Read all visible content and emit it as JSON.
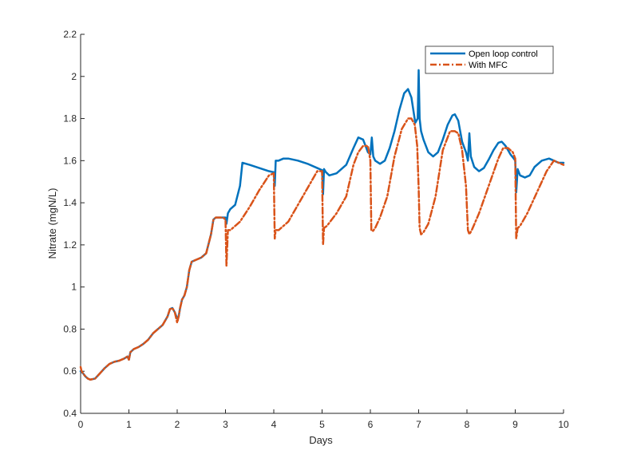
{
  "chart_data": {
    "type": "line",
    "xlabel": "Days",
    "ylabel": "Nitrate (mgN/L)",
    "xlim": [
      0,
      10
    ],
    "ylim": [
      0.4,
      2.2
    ],
    "xticks": [
      0,
      1,
      2,
      3,
      4,
      5,
      6,
      7,
      8,
      9,
      10
    ],
    "yticks": [
      0.4,
      0.6,
      0.8,
      1,
      1.2,
      1.4,
      1.6,
      1.8,
      2,
      2.2
    ],
    "xtick_labels": [
      "0",
      "1",
      "2",
      "3",
      "4",
      "5",
      "6",
      "7",
      "8",
      "9",
      "10"
    ],
    "ytick_labels": [
      "0.4",
      "0.6",
      "0.8",
      "1",
      "1.2",
      "1.4",
      "1.6",
      "1.8",
      "2",
      "2.2"
    ],
    "grid": false,
    "legend_position": "top-right",
    "series": [
      {
        "name": "Open loop control",
        "color": "#0072BD",
        "style": "solid",
        "x": [
          0,
          0.05,
          0.1,
          0.15,
          0.2,
          0.3,
          0.4,
          0.5,
          0.6,
          0.7,
          0.8,
          0.9,
          0.97,
          1.0,
          1.03,
          1.1,
          1.2,
          1.3,
          1.4,
          1.5,
          1.6,
          1.7,
          1.8,
          1.85,
          1.9,
          1.95,
          2.0,
          2.03,
          2.06,
          2.1,
          2.15,
          2.2,
          2.25,
          2.3,
          2.4,
          2.5,
          2.6,
          2.7,
          2.75,
          2.8,
          2.9,
          2.95,
          3.0,
          3.02,
          3.05,
          3.1,
          3.2,
          3.3,
          3.35,
          3.5,
          3.7,
          3.9,
          4.0,
          4.02,
          4.04,
          4.1,
          4.2,
          4.3,
          4.5,
          4.7,
          4.9,
          5.0,
          5.02,
          5.04,
          5.08,
          5.15,
          5.3,
          5.5,
          5.65,
          5.75,
          5.85,
          5.95,
          6.0,
          6.03,
          6.06,
          6.1,
          6.2,
          6.3,
          6.4,
          6.5,
          6.6,
          6.7,
          6.78,
          6.85,
          6.93,
          6.98,
          7.0,
          7.02,
          7.05,
          7.1,
          7.2,
          7.3,
          7.4,
          7.5,
          7.6,
          7.7,
          7.75,
          7.82,
          7.9,
          7.98,
          8.02,
          8.05,
          8.08,
          8.15,
          8.25,
          8.35,
          8.45,
          8.55,
          8.65,
          8.72,
          8.8,
          8.9,
          8.97,
          9.0,
          9.02,
          9.05,
          9.1,
          9.2,
          9.3,
          9.4,
          9.55,
          9.7,
          9.8,
          9.9,
          10.0
        ],
        "y": [
          0.6,
          0.59,
          0.575,
          0.565,
          0.56,
          0.565,
          0.59,
          0.615,
          0.635,
          0.645,
          0.65,
          0.66,
          0.67,
          0.655,
          0.69,
          0.705,
          0.715,
          0.73,
          0.75,
          0.78,
          0.8,
          0.82,
          0.86,
          0.895,
          0.9,
          0.88,
          0.85,
          0.86,
          0.9,
          0.94,
          0.96,
          1.0,
          1.08,
          1.12,
          1.13,
          1.14,
          1.16,
          1.25,
          1.32,
          1.33,
          1.33,
          1.33,
          1.33,
          1.3,
          1.35,
          1.37,
          1.39,
          1.48,
          1.59,
          1.58,
          1.565,
          1.55,
          1.545,
          1.48,
          1.6,
          1.6,
          1.61,
          1.61,
          1.6,
          1.585,
          1.565,
          1.555,
          1.44,
          1.56,
          1.545,
          1.53,
          1.54,
          1.58,
          1.66,
          1.71,
          1.7,
          1.64,
          1.63,
          1.71,
          1.62,
          1.6,
          1.585,
          1.6,
          1.66,
          1.74,
          1.84,
          1.92,
          1.94,
          1.9,
          1.78,
          1.8,
          2.03,
          1.8,
          1.74,
          1.7,
          1.64,
          1.62,
          1.64,
          1.7,
          1.77,
          1.815,
          1.82,
          1.79,
          1.69,
          1.64,
          1.6,
          1.73,
          1.62,
          1.57,
          1.55,
          1.565,
          1.605,
          1.65,
          1.685,
          1.69,
          1.67,
          1.63,
          1.61,
          1.6,
          1.45,
          1.56,
          1.53,
          1.52,
          1.53,
          1.57,
          1.6,
          1.61,
          1.6,
          1.59,
          1.59
        ]
      },
      {
        "name": "With MFC",
        "color": "#D95319",
        "style": "dash-dot",
        "x": [
          0,
          0.02,
          0.05,
          0.1,
          0.15,
          0.2,
          0.3,
          0.4,
          0.5,
          0.6,
          0.7,
          0.8,
          0.9,
          0.97,
          1.0,
          1.03,
          1.1,
          1.2,
          1.3,
          1.4,
          1.5,
          1.6,
          1.7,
          1.8,
          1.85,
          1.9,
          1.95,
          2.0,
          2.03,
          2.06,
          2.1,
          2.15,
          2.2,
          2.25,
          2.3,
          2.4,
          2.5,
          2.6,
          2.7,
          2.75,
          2.8,
          2.9,
          2.95,
          3.0,
          3.02,
          3.05,
          3.1,
          3.2,
          3.3,
          3.5,
          3.7,
          3.9,
          4.0,
          4.02,
          4.04,
          4.1,
          4.3,
          4.5,
          4.7,
          4.9,
          5.0,
          5.02,
          5.04,
          5.1,
          5.3,
          5.5,
          5.65,
          5.75,
          5.85,
          5.95,
          6.0,
          6.02,
          6.05,
          6.1,
          6.2,
          6.35,
          6.5,
          6.65,
          6.78,
          6.85,
          6.92,
          6.97,
          7.0,
          7.02,
          7.05,
          7.1,
          7.2,
          7.35,
          7.5,
          7.65,
          7.75,
          7.82,
          7.9,
          7.98,
          8.02,
          8.05,
          8.1,
          8.25,
          8.45,
          8.65,
          8.75,
          8.85,
          8.95,
          9.0,
          9.02,
          9.05,
          9.1,
          9.25,
          9.45,
          9.65,
          9.8,
          9.9,
          10.0
        ],
        "y": [
          0.62,
          0.6,
          0.59,
          0.575,
          0.565,
          0.56,
          0.565,
          0.59,
          0.615,
          0.635,
          0.645,
          0.65,
          0.66,
          0.67,
          0.655,
          0.69,
          0.705,
          0.715,
          0.73,
          0.75,
          0.78,
          0.8,
          0.82,
          0.86,
          0.895,
          0.9,
          0.88,
          0.83,
          0.86,
          0.9,
          0.94,
          0.96,
          1.0,
          1.08,
          1.12,
          1.13,
          1.14,
          1.16,
          1.25,
          1.32,
          1.33,
          1.33,
          1.33,
          1.32,
          1.1,
          1.27,
          1.27,
          1.29,
          1.31,
          1.38,
          1.46,
          1.53,
          1.54,
          1.23,
          1.27,
          1.27,
          1.31,
          1.39,
          1.47,
          1.55,
          1.55,
          1.2,
          1.28,
          1.29,
          1.35,
          1.43,
          1.58,
          1.64,
          1.67,
          1.67,
          1.6,
          1.27,
          1.265,
          1.28,
          1.33,
          1.43,
          1.62,
          1.75,
          1.8,
          1.8,
          1.77,
          1.67,
          1.47,
          1.28,
          1.25,
          1.26,
          1.3,
          1.43,
          1.65,
          1.74,
          1.74,
          1.73,
          1.65,
          1.48,
          1.27,
          1.25,
          1.27,
          1.35,
          1.48,
          1.61,
          1.66,
          1.66,
          1.64,
          1.61,
          1.23,
          1.28,
          1.29,
          1.35,
          1.45,
          1.55,
          1.6,
          1.59,
          1.58
        ]
      }
    ]
  }
}
